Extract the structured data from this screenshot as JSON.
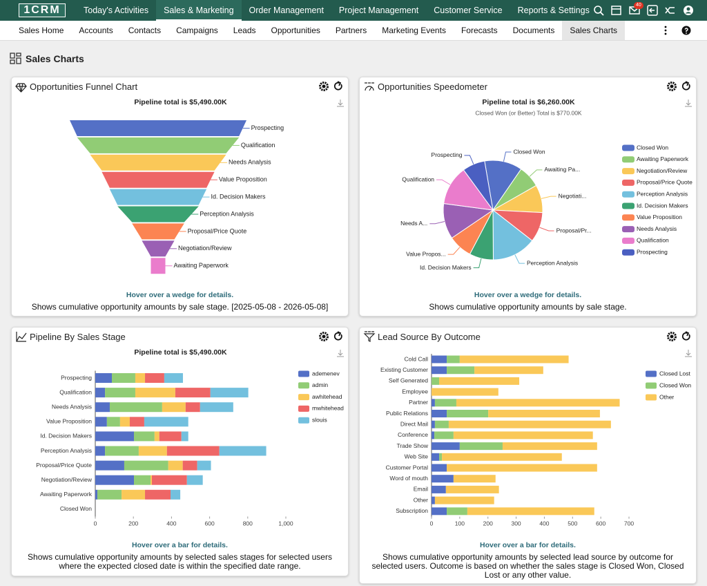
{
  "app": {
    "logo": "1CRM",
    "nav": [
      "Today's Activities",
      "Sales & Marketing",
      "Order Management",
      "Project Management",
      "Customer Service",
      "Reports & Settings"
    ],
    "badge": 40,
    "subnav": [
      "Sales Home",
      "Accounts",
      "Contacts",
      "Campaigns",
      "Leads",
      "Opportunities",
      "Partners",
      "Marketing Events",
      "Forecasts",
      "Documents",
      "Sales Charts"
    ],
    "page_title": "Sales Charts"
  },
  "chart_data": [
    {
      "type": "funnel",
      "title": "Opportunities Funnel Chart",
      "subtitle": "Pipeline total is $5,490.00K",
      "categories": [
        "Prospecting",
        "Qualification",
        "Needs Analysis",
        "Value Proposition",
        "Id. Decision Makers",
        "Perception Analysis",
        "Proposal/Price Quote",
        "Negotiation/Review",
        "Awaiting Paperwork"
      ],
      "values": [
        5490,
        5030,
        4225,
        3500,
        3010,
        2520,
        1620,
        1010,
        450
      ],
      "colors": [
        "#5470c6",
        "#91cc75",
        "#fac858",
        "#ee6666",
        "#73c0de",
        "#3ba272",
        "#fc8452",
        "#9a60b4",
        "#ea7ccc"
      ],
      "hint": "Hover over a wedge for details.",
      "caption": "Shows cumulative opportunity amounts by sale stage. [2025-05-08 - 2026-05-08]"
    },
    {
      "type": "pie",
      "title": "Opportunities Speedometer",
      "subtitle": "Pipeline total is $6,260.00K",
      "note": "Closed Won (or Better) Total is $770.00K",
      "categories": [
        "Closed Won",
        "Awaiting Paperwork",
        "Negotiation/Review",
        "Proposal/Price Quote",
        "Perception Analysis",
        "Id. Decision Makers",
        "Value Proposition",
        "Needs Analysis",
        "Qualification",
        "Prospecting"
      ],
      "slice_labels": [
        "Closed Won",
        "Awaiting Pa...",
        "Negotiati...",
        "Proposal/Pr...",
        "Perception Analysis",
        "Id. Decision Makers",
        "Value Propos...",
        "Needs A...",
        "Qualification",
        "Prospecting"
      ],
      "values": [
        770,
        450,
        565,
        609,
        899,
        489,
        489,
        725,
        804,
        460
      ],
      "colors": [
        "#5470c6",
        "#91cc75",
        "#fac858",
        "#ee6666",
        "#73c0de",
        "#3ba272",
        "#fc8452",
        "#9a60b4",
        "#ea7ccc",
        "#4a5fc1"
      ],
      "legend": "right",
      "hint": "Hover over a wedge for details.",
      "caption": "Shows cumulative opportunity amounts by sale stage."
    },
    {
      "type": "bar",
      "orientation": "horizontal",
      "stacked": true,
      "title": "Pipeline By Sales Stage",
      "subtitle": "Pipeline total is $5,490.00K",
      "categories": [
        "Prospecting",
        "Qualification",
        "Needs Analysis",
        "Value Proposition",
        "Id. Decision Makers",
        "Perception Analysis",
        "Proposal/Price Quote",
        "Negotiation/Review",
        "Awaiting Paperwork",
        "Closed Won"
      ],
      "series": [
        {
          "name": "ademenev",
          "color": "#5470c6",
          "values": [
            87,
            51,
            76,
            61,
            203,
            51,
            152,
            203,
            11,
            0
          ]
        },
        {
          "name": "admin",
          "color": "#91cc75",
          "values": [
            123,
            159,
            275,
            69,
            108,
            177,
            231,
            87,
            127,
            0
          ]
        },
        {
          "name": "awhitehead",
          "color": "#fac858",
          "values": [
            51,
            210,
            123,
            51,
            25,
            148,
            76,
            7,
            123,
            0
          ]
        },
        {
          "name": "mwhitehead",
          "color": "#ee6666",
          "values": [
            101,
            184,
            76,
            76,
            116,
            275,
            76,
            184,
            134,
            0
          ]
        },
        {
          "name": "slouis",
          "color": "#73c0de",
          "values": [
            98,
            199,
            174,
            231,
            36,
            246,
            72,
            83,
            51,
            0
          ]
        }
      ],
      "xlim": [
        0,
        1000
      ],
      "xticks": [
        0,
        200,
        400,
        600,
        800,
        {
          "value": 1000,
          "label": "1,000"
        }
      ],
      "legend": "right",
      "hint": "Hover over a bar for details.",
      "caption": "Shows cumulative opportunity amounts by selected sales stages for selected users where the expected closed date is within the specified date range."
    },
    {
      "type": "bar",
      "orientation": "horizontal",
      "stacked": true,
      "title": "Lead Source By Outcome",
      "categories": [
        "Cold Call",
        "Existing Customer",
        "Self Generated",
        "Employee",
        "Partner",
        "Public Relations",
        "Direct Mail",
        "Conference",
        "Trade Show",
        "Web Site",
        "Customer Portal",
        "Word of mouth",
        "Email",
        "Other",
        "Subscription"
      ],
      "series": [
        {
          "name": "Closed Lost",
          "color": "#5470c6",
          "values": [
            54,
            54,
            0,
            0,
            12,
            54,
            12,
            10,
            100,
            27,
            54,
            78,
            51,
            12,
            54
          ]
        },
        {
          "name": "Closed Won",
          "color": "#91cc75",
          "values": [
            46,
            98,
            27,
            0,
            76,
            147,
            49,
            68,
            152,
            10,
            0,
            0,
            0,
            0,
            73
          ]
        },
        {
          "name": "Other",
          "color": "#fac858",
          "values": [
            386,
            244,
            284,
            237,
            579,
            396,
            575,
            494,
            335,
            425,
            533,
            149,
            188,
            210,
            450
          ]
        }
      ],
      "xlim": [
        0,
        700
      ],
      "xticks": [
        0,
        100,
        200,
        300,
        400,
        500,
        600,
        700
      ],
      "legend": "right",
      "hint": "Hover over a bar for details.",
      "caption": "Shows cumulative opportunity amounts by selected lead source by outcome for selected users. Outcome is based on whether the sales stage is Closed Won, Closed Lost or any other value."
    }
  ]
}
